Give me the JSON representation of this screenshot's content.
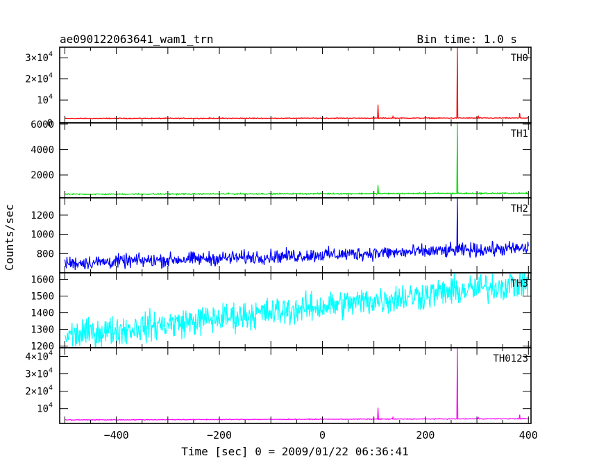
{
  "chart_data": {
    "type": "line",
    "title": "ae090122063641_wam1_trn",
    "subtitle": "Bin time: 1.0 s",
    "xlabel": "Time [sec] 0 = 2009/01/22 06:36:41",
    "ylabel": "Counts/sec",
    "xlim": [
      -510,
      405
    ],
    "x_ticks": [
      -400,
      -200,
      0,
      200,
      400
    ],
    "x_tick_labels": [
      "−400",
      "−200",
      "0",
      "200",
      "400"
    ],
    "grid": false,
    "panels": [
      {
        "name": "TH0",
        "color": "#ff0000",
        "ylim": [
          -800,
          35000
        ],
        "y_ticks": [
          {
            "value": 10000,
            "mant": "10",
            "exp": "4"
          },
          {
            "value": 20000,
            "mant": "2×10",
            "exp": "4"
          },
          {
            "value": 30000,
            "mant": "3×10",
            "exp": "4"
          }
        ],
        "y_tick_zero": "0",
        "baseline": {
          "x": [
            -500,
            400
          ],
          "y": [
            1300,
            1500
          ]
        },
        "noise": 120,
        "spikes": [
          {
            "x": 108,
            "y": 7800
          },
          {
            "x": 137,
            "y": 2300
          },
          {
            "x": 262,
            "y": 35000
          },
          {
            "x": 303,
            "y": 2200
          },
          {
            "x": 383,
            "y": 3800
          }
        ]
      },
      {
        "name": "TH1",
        "color": "#00e000",
        "ylim": [
          200,
          6100
        ],
        "y_ticks": [
          {
            "value": 2000,
            "label": "2000"
          },
          {
            "value": 4000,
            "label": "4000"
          },
          {
            "value": 6000,
            "label": "6000"
          }
        ],
        "baseline": {
          "x": [
            -500,
            400
          ],
          "y": [
            480,
            560
          ]
        },
        "noise": 30,
        "spikes": [
          {
            "x": 108,
            "y": 1200
          },
          {
            "x": 262,
            "y": 6100
          }
        ]
      },
      {
        "name": "TH2",
        "color": "#0000ff",
        "ylim": [
          600,
          1380
        ],
        "y_ticks": [
          {
            "value": 800,
            "label": "800"
          },
          {
            "value": 1000,
            "label": "1000"
          },
          {
            "value": 1200,
            "label": "1200"
          }
        ],
        "baseline": {
          "x": [
            -500,
            400
          ],
          "y": [
            700,
            855
          ]
        },
        "noise": 45,
        "spikes": [
          {
            "x": 262,
            "y": 1380
          }
        ]
      },
      {
        "name": "TH3",
        "color": "#00ffff",
        "ylim": [
          1190,
          1640
        ],
        "y_ticks": [
          {
            "value": 1200,
            "label": "1200"
          },
          {
            "value": 1300,
            "label": "1300"
          },
          {
            "value": 1400,
            "label": "1400"
          },
          {
            "value": 1500,
            "label": "1500"
          },
          {
            "value": 1600,
            "label": "1600"
          }
        ],
        "baseline": {
          "x": [
            -500,
            400
          ],
          "y": [
            1260,
            1580
          ]
        },
        "noise": 55,
        "spikes": []
      },
      {
        "name": "TH0123",
        "color": "#ff00ff",
        "ylim": [
          1500,
          45000
        ],
        "y_ticks": [
          {
            "value": 10000,
            "mant": "10",
            "exp": "4"
          },
          {
            "value": 20000,
            "mant": "2×10",
            "exp": "4"
          },
          {
            "value": 30000,
            "mant": "3×10",
            "exp": "4"
          },
          {
            "value": 40000,
            "mant": "4×10",
            "exp": "4"
          }
        ],
        "baseline": {
          "x": [
            -500,
            400
          ],
          "y": [
            3500,
            4200
          ]
        },
        "noise": 150,
        "spikes": [
          {
            "x": 108,
            "y": 10500
          },
          {
            "x": 137,
            "y": 5000
          },
          {
            "x": 262,
            "y": 45000
          },
          {
            "x": 303,
            "y": 4800
          },
          {
            "x": 383,
            "y": 6500
          }
        ]
      }
    ]
  }
}
